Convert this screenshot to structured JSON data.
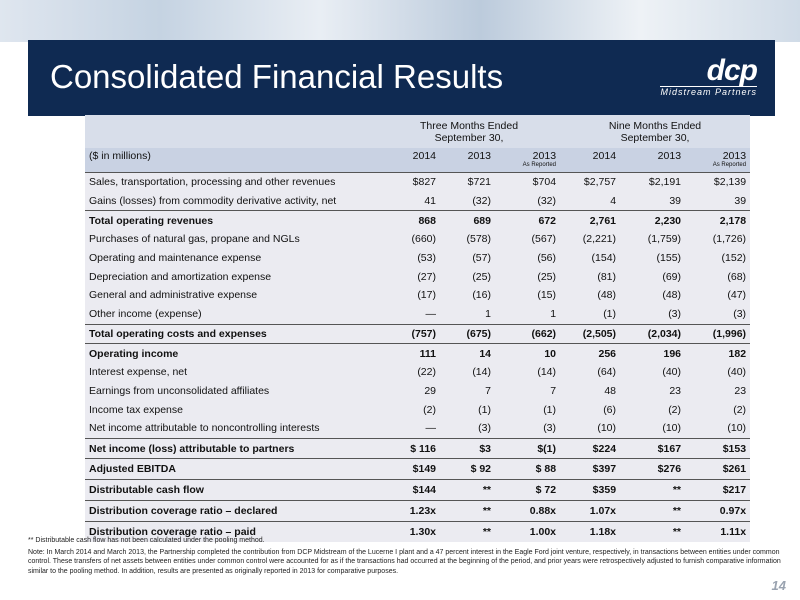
{
  "header": {
    "title": "Consolidated Financial Results"
  },
  "logo": {
    "mark": "dcp",
    "sub": "Midstream Partners"
  },
  "table": {
    "group_headers": [
      {
        "line1": "Three Months Ended",
        "line2": "September 30,"
      },
      {
        "line1": "Nine Months Ended",
        "line2": "September 30,"
      }
    ],
    "units_label": "($ in millions)",
    "columns": [
      {
        "year": "2014"
      },
      {
        "year": "2013"
      },
      {
        "year": "2013",
        "note": "As Reported"
      },
      {
        "year": "2014"
      },
      {
        "year": "2013"
      },
      {
        "year": "2013",
        "note": "As Reported"
      }
    ],
    "rows": [
      {
        "label": "Sales, transportation, processing and other revenues",
        "values": [
          "$827",
          "$721",
          "$704",
          "$2,757",
          "$2,191",
          "$2,139"
        ]
      },
      {
        "label": "Gains (losses) from commodity derivative activity, net",
        "values": [
          "41",
          "(32)",
          "(32)",
          "4",
          "39",
          "39"
        ]
      },
      {
        "label": "Total operating revenues",
        "values": [
          "868",
          "689",
          "672",
          "2,761",
          "2,230",
          "2,178"
        ]
      },
      {
        "label": "Purchases of natural gas, propane and NGLs",
        "values": [
          "(660)",
          "(578)",
          "(567)",
          "(2,221)",
          "(1,759)",
          "(1,726)"
        ]
      },
      {
        "label": "Operating and maintenance expense",
        "values": [
          "(53)",
          "(57)",
          "(56)",
          "(154)",
          "(155)",
          "(152)"
        ]
      },
      {
        "label": "Depreciation and amortization expense",
        "values": [
          "(27)",
          "(25)",
          "(25)",
          "(81)",
          "(69)",
          "(68)"
        ]
      },
      {
        "label": "General and administrative expense",
        "values": [
          "(17)",
          "(16)",
          "(15)",
          "(48)",
          "(48)",
          "(47)"
        ]
      },
      {
        "label": "Other income (expense)",
        "values": [
          "—",
          "1",
          "1",
          "(1)",
          "(3)",
          "(3)"
        ]
      },
      {
        "label": "Total operating costs and expenses",
        "values": [
          "(757)",
          "(675)",
          "(662)",
          "(2,505)",
          "(2,034)",
          "(1,996)"
        ]
      },
      {
        "label": "Operating income",
        "values": [
          "111",
          "14",
          "10",
          "256",
          "196",
          "182"
        ]
      },
      {
        "label": "Interest expense, net",
        "values": [
          "(22)",
          "(14)",
          "(14)",
          "(64)",
          "(40)",
          "(40)"
        ]
      },
      {
        "label": "Earnings from unconsolidated affiliates",
        "values": [
          "29",
          "7",
          "7",
          "48",
          "23",
          "23"
        ]
      },
      {
        "label": "Income tax expense",
        "values": [
          "(2)",
          "(1)",
          "(1)",
          "(6)",
          "(2)",
          "(2)"
        ]
      },
      {
        "label": "Net income attributable to noncontrolling interests",
        "values": [
          "—",
          "(3)",
          "(3)",
          "(10)",
          "(10)",
          "(10)"
        ]
      },
      {
        "label": "Net income (loss) attributable to partners",
        "values": [
          "$ 116",
          "$3",
          "$(1)",
          "$224",
          "$167",
          "$153"
        ]
      },
      {
        "label": "Adjusted EBITDA",
        "values": [
          "$149",
          "$ 92",
          "$ 88",
          "$397",
          "$276",
          "$261"
        ]
      },
      {
        "label": "Distributable cash flow",
        "values": [
          "$144",
          "**",
          "$ 72",
          "$359",
          "**",
          "$217"
        ]
      },
      {
        "label": "Distribution coverage ratio – declared",
        "values": [
          "1.23x",
          "**",
          "0.88x",
          "1.07x",
          "**",
          "0.97x"
        ]
      },
      {
        "label": "Distribution coverage ratio – paid",
        "values": [
          "1.30x",
          "**",
          "1.00x",
          "1.18x",
          "**",
          "1.11x"
        ]
      }
    ]
  },
  "footnotes": {
    "asterisk": "** Distributable cash flow has not been calculated under the pooling method.",
    "note": "Note: In March 2014 and March 2013, the Partnership completed the contribution from DCP Midstream of the Lucerne I plant and a 47 percent interest in the Eagle Ford joint venture, respectively, in transactions between entities under common control. These transfers of net assets between entities under common control were accounted for as if the transactions had occurred at the beginning of the period, and prior years were retrospectively adjusted to furnish comparative information similar to the pooling method. In addition, results are presented as originally reported in 2013 for comparative purposes."
  },
  "page_number": "14"
}
